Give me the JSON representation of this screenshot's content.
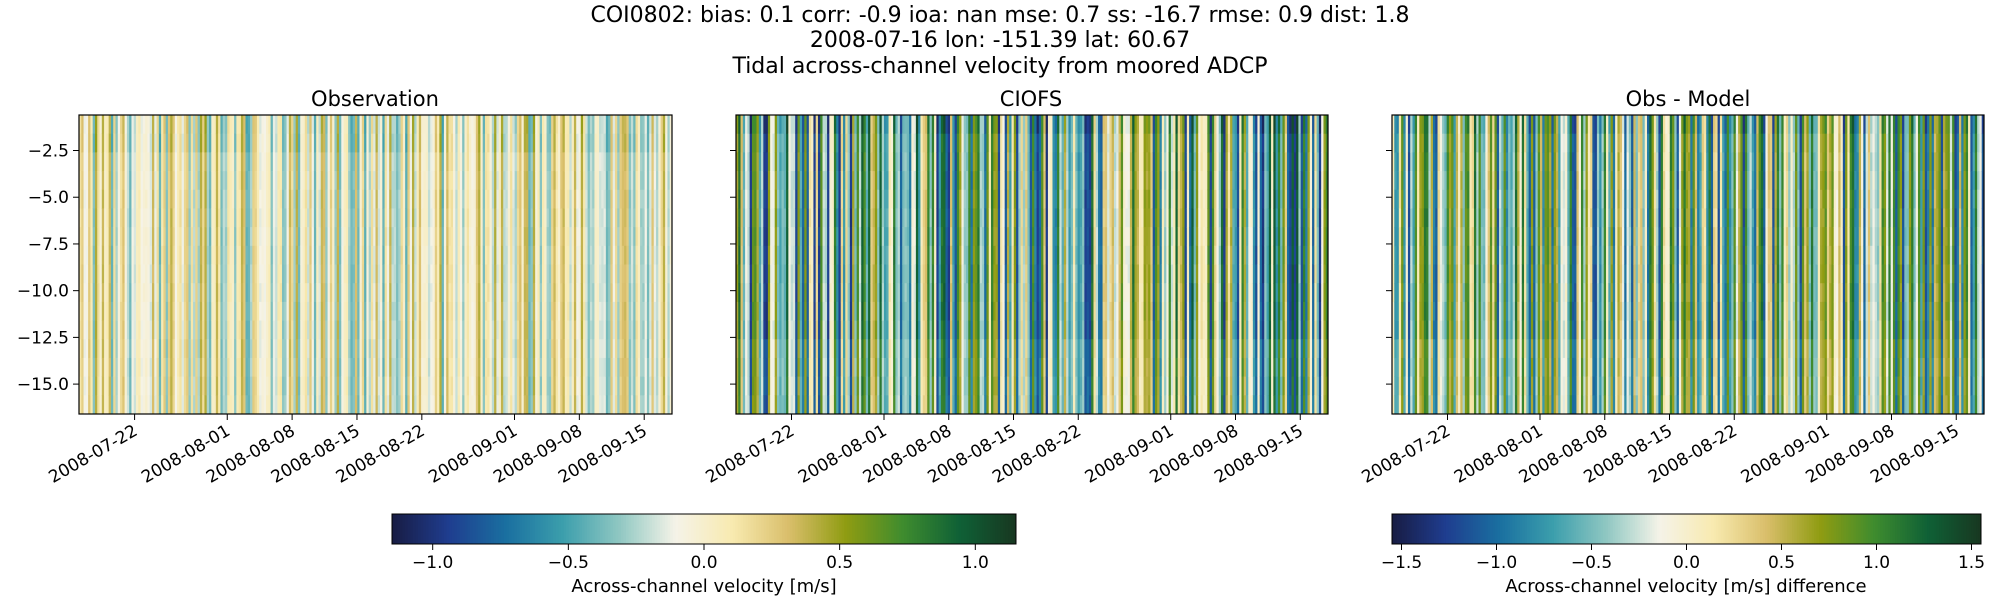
{
  "header": {
    "line1": "COI0802: bias: 0.1  corr: -0.9  ioa: nan  mse: 0.7  ss: -16.7  rmse: 0.9  dist: 1.8",
    "line2": "2008-07-16 lon: -151.39 lat: 60.67",
    "line3": "Tidal across-channel velocity from moored ADCP"
  },
  "colors": {
    "colormap": [
      "#181c43",
      "#1f3d8f",
      "#1a6fa0",
      "#3b9eac",
      "#8fc7c2",
      "#f5f3e8",
      "#f8eab0",
      "#d9be6a",
      "#8f9c12",
      "#3f8c2e",
      "#0f6136",
      "#183720"
    ]
  },
  "chart_data": [
    {
      "type": "heatmap",
      "panel": "observation",
      "title": "Observation",
      "x_ticks": [
        "2008-07-22",
        "2008-08-01",
        "2008-08-08",
        "2008-08-15",
        "2008-08-22",
        "2008-09-01",
        "2008-09-08",
        "2008-09-15"
      ],
      "x_range": [
        "2008-07-16",
        "2008-09-18"
      ],
      "y_ticks": [
        "−2.5",
        "−5.0",
        "−7.5",
        "−10.0",
        "−12.5",
        "−15.0"
      ],
      "y_range": [
        -16.6,
        -0.6
      ],
      "colorbar_range": [
        -1.15,
        1.15
      ],
      "value_amplitude": 0.5
    },
    {
      "type": "heatmap",
      "panel": "model",
      "title": "CIOFS",
      "x_ticks": [
        "2008-07-22",
        "2008-08-01",
        "2008-08-08",
        "2008-08-15",
        "2008-08-22",
        "2008-09-01",
        "2008-09-08",
        "2008-09-15"
      ],
      "x_range": [
        "2008-07-16",
        "2008-09-18"
      ],
      "y_range": [
        -16.6,
        -0.6
      ],
      "colorbar_range": [
        -1.15,
        1.15
      ],
      "value_amplitude": 1.1
    },
    {
      "type": "heatmap",
      "panel": "difference",
      "title": "Obs - Model",
      "x_ticks": [
        "2008-07-22",
        "2008-08-01",
        "2008-08-08",
        "2008-08-15",
        "2008-08-22",
        "2008-09-01",
        "2008-09-08",
        "2008-09-15"
      ],
      "x_range": [
        "2008-07-16",
        "2008-09-18"
      ],
      "y_range": [
        -16.6,
        -0.6
      ],
      "colorbar_range": [
        -1.55,
        1.55
      ],
      "value_amplitude": 1.3
    }
  ],
  "colorbars": [
    {
      "label": "Across-channel velocity [m/s]",
      "range": [
        -1.15,
        1.15
      ],
      "ticks": [
        -1.0,
        -0.5,
        0.0,
        0.5,
        1.0
      ],
      "tick_labels": [
        "−1.0",
        "−0.5",
        "0.0",
        "0.5",
        "1.0"
      ]
    },
    {
      "label": "Across-channel velocity [m/s] difference",
      "range": [
        -1.55,
        1.55
      ],
      "ticks": [
        -1.5,
        -1.0,
        -0.5,
        0.0,
        0.5,
        1.0,
        1.5
      ],
      "tick_labels": [
        "−1.5",
        "−1.0",
        "−0.5",
        "0.0",
        "0.5",
        "1.0",
        "1.5"
      ]
    }
  ]
}
